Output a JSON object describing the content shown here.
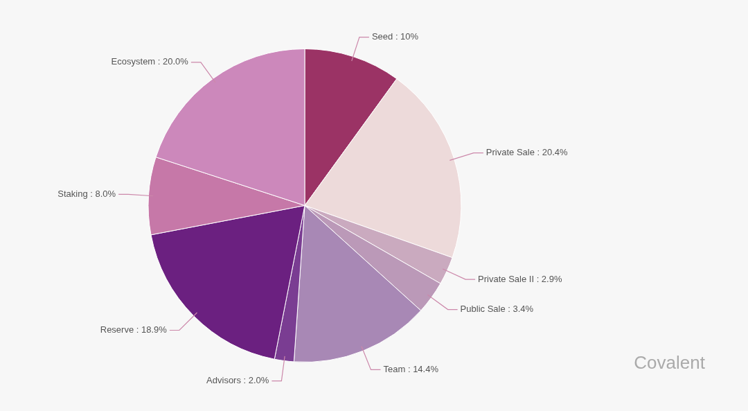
{
  "chart_data": {
    "type": "pie",
    "categories": [
      "Seed : 10%",
      "Private Sale : 20.4%",
      "Private Sale II : 2.9%",
      "Public Sale : 3.4%",
      "Team : 14.4%",
      "Advisors : 2.0%",
      "Reserve : 18.9%",
      "Staking : 8.0%",
      "Ecosystem : 20.0%"
    ],
    "values": [
      10.0,
      20.4,
      2.9,
      3.4,
      14.4,
      2.0,
      18.9,
      8.0,
      20.0
    ],
    "colors": [
      "#9b3365",
      "#eddada",
      "#caaabf",
      "#bb99b8",
      "#a888b5",
      "#7a3d92",
      "#6b2080",
      "#c678a8",
      "#cc88bb"
    ],
    "annotations": [
      "Covalent"
    ],
    "legend": false
  }
}
